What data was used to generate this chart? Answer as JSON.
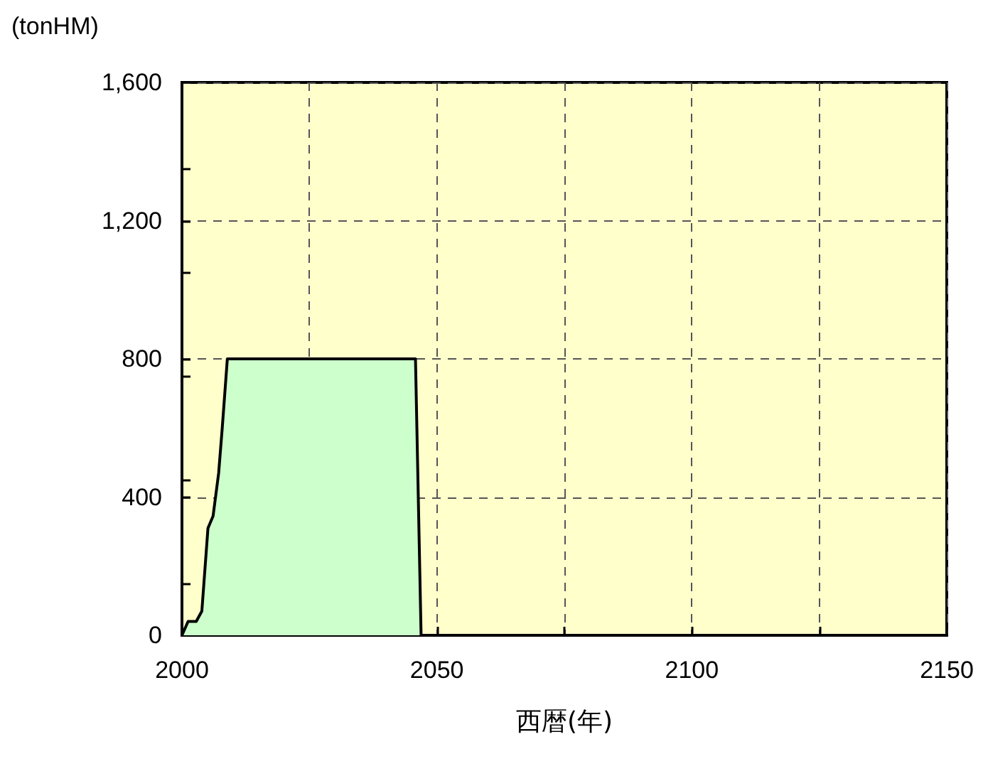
{
  "chart_data": {
    "type": "area",
    "xlabel": "西暦(年)",
    "ylabel": "(tonHM)",
    "x": [
      2000,
      2001.2,
      2002.8,
      2003.9,
      2005.1,
      2006.1,
      2007.2,
      2007.9,
      2008.9,
      2045.8,
      2046.9
    ],
    "series": [
      {
        "color": "#ccffcc",
        "values": [
          0,
          40,
          40,
          70,
          310,
          345,
          470,
          600,
          800,
          800,
          0
        ]
      }
    ],
    "xlim": [
      2000,
      2150
    ],
    "xticks": [
      2000,
      {
        "value": 2025,
        "label": null
      },
      2050,
      {
        "value": 2075,
        "label": null
      },
      2100,
      {
        "value": 2125,
        "label": null
      },
      2150
    ],
    "ylim": [
      0,
      1600
    ],
    "yticks": [
      0,
      400,
      800,
      {
        "value": 1200,
        "label": "1,200"
      },
      {
        "value": 1600,
        "label": "1,600"
      }
    ],
    "grid": true,
    "marker": "none",
    "line_style": "solid"
  }
}
